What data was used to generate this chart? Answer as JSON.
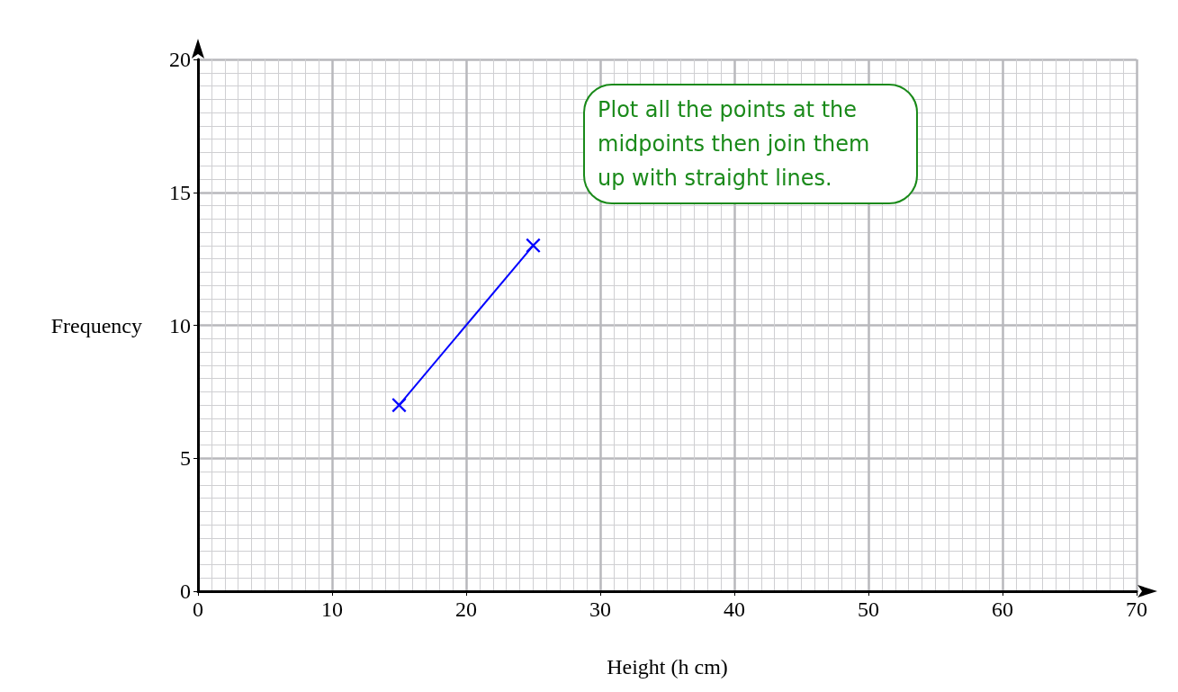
{
  "chart_data": {
    "type": "line",
    "xlabel": "Height (h cm)",
    "ylabel": "Frequency",
    "x": [
      15,
      25
    ],
    "series": [
      {
        "color": "#0000ff",
        "values": [
          7,
          13
        ]
      }
    ],
    "xlim": [
      0,
      70
    ],
    "xticks": [
      0,
      10,
      20,
      30,
      40,
      50,
      60,
      70
    ],
    "ylim": [
      0,
      20
    ],
    "yticks": [
      0,
      5,
      10,
      15,
      20
    ],
    "grid": true,
    "marker": "cross",
    "line_style": "solid",
    "annotations": [
      "Plot all the points at the midpoints then join them up with straight lines."
    ]
  }
}
